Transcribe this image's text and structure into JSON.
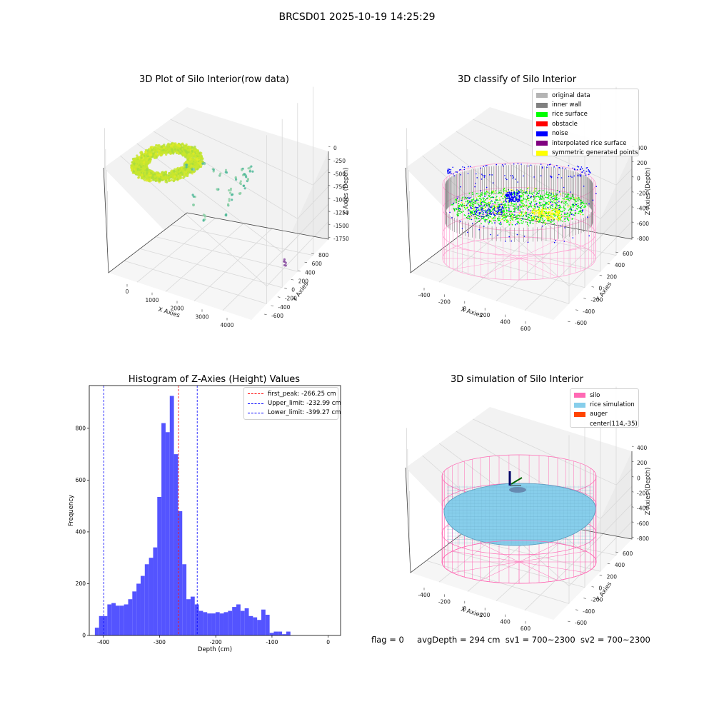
{
  "figure": {
    "title": "BRCSD01 2025-10-19 14:25:29",
    "status_line": {
      "flag": "flag = 0",
      "avg_depth": "avgDepth = 294 cm",
      "sv1": "sv1 = 700~2300",
      "sv2": "sv2 = 700~2300"
    }
  },
  "colors": {
    "original_data": "#b4b4b4",
    "inner_wall": "#808080",
    "rice_surface": "#00ff00",
    "obstacle": "#ff0000",
    "noise": "#0000ff",
    "interpolated": "#800080",
    "symmetric": "#ffff00",
    "silo": "#ff69b4",
    "rice_simulation": "#87ceeb",
    "auger": "#ff4500",
    "hist_bar": "#4e4eff",
    "first_peak": "#ff0000",
    "limits": "#0000ff"
  },
  "chart_data": [
    {
      "type": "scatter",
      "title": "3D Plot of Silo Interior(row data)",
      "xlabel": "X Axies",
      "ylabel": "Y Axies",
      "zlabel": "Z Axies (Depth)",
      "x_ticks": [
        "0",
        "1000",
        "2000",
        "3000",
        "4000"
      ],
      "y_ticks": [
        "800",
        "600",
        "400",
        "200",
        "0",
        "-200",
        "-400",
        "-600"
      ],
      "z_ticks": [
        "0",
        "-250",
        "-500",
        "-750",
        "-1000",
        "-1250",
        "-1500",
        "-1750"
      ]
    },
    {
      "type": "scatter",
      "title": "3D classify of Silo Interior",
      "xlabel": "X Axies",
      "ylabel": "Y Axies",
      "zlabel": "Z Axies (Depth)",
      "x_ticks": [
        "-400",
        "-200",
        "0",
        "200",
        "400",
        "600"
      ],
      "y_ticks": [
        "600",
        "400",
        "200",
        "0",
        "-200",
        "-400",
        "-600"
      ],
      "z_ticks": [
        "400",
        "200",
        "0",
        "-200",
        "-400",
        "-600",
        "-800"
      ],
      "legend": [
        "original data",
        "inner wall",
        "rice surface",
        "obstacle",
        "noise",
        "interpolated rice surface",
        "symmetric generated points"
      ]
    },
    {
      "type": "bar",
      "title": "Histogram of Z-Axies (Height) Values",
      "xlabel": "Depth (cm)",
      "ylabel": "Frequency",
      "xlim": [
        -425,
        22
      ],
      "ylim": [
        0,
        965
      ],
      "x_ticks": [
        -400,
        -300,
        -200,
        -100,
        0
      ],
      "y_ticks": [
        0,
        200,
        400,
        600,
        800
      ],
      "bin_start": -415,
      "bin_width": 7.4,
      "values": [
        30,
        75,
        75,
        120,
        125,
        115,
        115,
        120,
        140,
        170,
        200,
        230,
        275,
        300,
        340,
        535,
        820,
        785,
        925,
        700,
        480,
        275,
        140,
        150,
        120,
        95,
        90,
        85,
        85,
        90,
        85,
        90,
        95,
        110,
        120,
        95,
        105,
        75,
        70,
        60,
        100,
        80,
        10,
        15,
        15,
        5,
        15
      ],
      "lines": [
        {
          "label": "first_peak: -266.25 cm",
          "x": -266.25,
          "kind": "first_peak"
        },
        {
          "label": "Upper_limit: -232.99 cm",
          "x": -232.99,
          "kind": "limit"
        },
        {
          "label": "Lower_limit: -399.27 cm",
          "x": -399.27,
          "kind": "limit"
        }
      ]
    },
    {
      "type": "area",
      "title": "3D simulation of Silo Interior",
      "xlabel": "X Axies",
      "ylabel": "Y Axies",
      "zlabel": "Z Axies (Depth)",
      "x_ticks": [
        "-400",
        "-200",
        "0",
        "200",
        "400",
        "600"
      ],
      "y_ticks": [
        "600",
        "400",
        "200",
        "0",
        "-200",
        "-400",
        "-600"
      ],
      "z_ticks": [
        "400",
        "200",
        "0",
        "-200",
        "-400",
        "-600",
        "-800"
      ],
      "legend": [
        "silo",
        "rice simulation",
        "auger",
        "center(114,-35)"
      ]
    }
  ]
}
